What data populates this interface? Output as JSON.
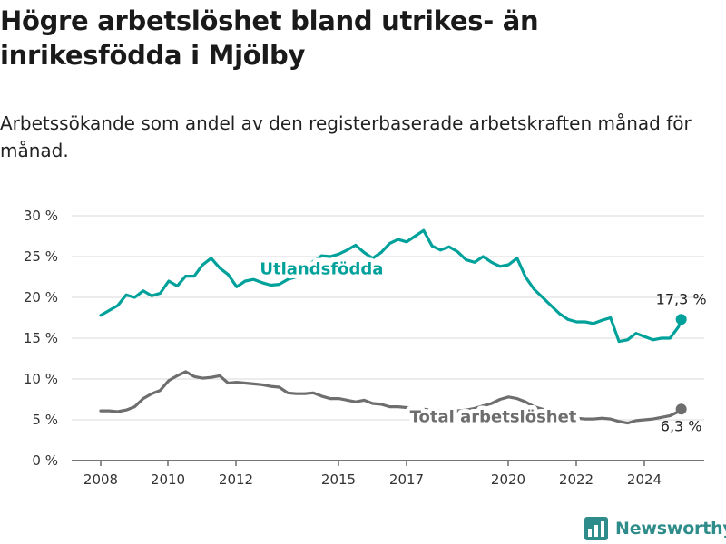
{
  "header": {
    "title": "Högre arbetslöshet bland utrikes- än inrikesfödda i Mjölby",
    "subtitle": "Arbetssökande som andel av den registerbaserade arbetskraften månad för månad."
  },
  "brand": {
    "name": "Newsworthy",
    "color": "#2e8c8a"
  },
  "chart_data": {
    "type": "line",
    "x_ticks": [
      "2008",
      "2010",
      "2012",
      "2015",
      "2017",
      "2020",
      "2022",
      "2024"
    ],
    "y_ticks": [
      "0 %",
      "5 %",
      "10 %",
      "15 %",
      "20 %",
      "25 %",
      "30 %"
    ],
    "ylim": [
      0,
      30
    ],
    "xlim": [
      2008,
      2025.3
    ],
    "grid": true,
    "series": [
      {
        "name": "Utlandsfödda",
        "color": "#00a19a",
        "end_label": "17,3 %",
        "points": [
          [
            2008.0,
            17.8
          ],
          [
            2008.25,
            18.4
          ],
          [
            2008.5,
            19.0
          ],
          [
            2008.75,
            20.3
          ],
          [
            2009.0,
            20.0
          ],
          [
            2009.25,
            20.8
          ],
          [
            2009.5,
            20.2
          ],
          [
            2009.75,
            20.5
          ],
          [
            2010.0,
            22.0
          ],
          [
            2010.25,
            21.4
          ],
          [
            2010.5,
            22.6
          ],
          [
            2010.75,
            22.6
          ],
          [
            2011.0,
            24.0
          ],
          [
            2011.25,
            24.8
          ],
          [
            2011.5,
            23.6
          ],
          [
            2011.75,
            22.8
          ],
          [
            2012.0,
            21.3
          ],
          [
            2012.25,
            22.0
          ],
          [
            2012.5,
            22.2
          ],
          [
            2012.75,
            21.8
          ],
          [
            2013.0,
            21.5
          ],
          [
            2013.25,
            21.6
          ],
          [
            2013.5,
            22.2
          ],
          [
            2013.75,
            22.5
          ],
          [
            2014.0,
            23.6
          ],
          [
            2014.25,
            24.4
          ],
          [
            2014.5,
            25.1
          ],
          [
            2014.75,
            25.0
          ],
          [
            2015.0,
            25.3
          ],
          [
            2015.25,
            25.8
          ],
          [
            2015.5,
            26.4
          ],
          [
            2015.75,
            25.5
          ],
          [
            2016.0,
            24.8
          ],
          [
            2016.25,
            25.5
          ],
          [
            2016.5,
            26.6
          ],
          [
            2016.75,
            27.1
          ],
          [
            2017.0,
            26.8
          ],
          [
            2017.25,
            27.5
          ],
          [
            2017.5,
            28.2
          ],
          [
            2017.75,
            26.3
          ],
          [
            2018.0,
            25.8
          ],
          [
            2018.25,
            26.2
          ],
          [
            2018.5,
            25.6
          ],
          [
            2018.75,
            24.6
          ],
          [
            2019.0,
            24.3
          ],
          [
            2019.25,
            25.0
          ],
          [
            2019.5,
            24.3
          ],
          [
            2019.75,
            23.8
          ],
          [
            2020.0,
            24.0
          ],
          [
            2020.25,
            24.8
          ],
          [
            2020.5,
            22.5
          ],
          [
            2020.75,
            21.0
          ],
          [
            2021.0,
            20.0
          ],
          [
            2021.25,
            19.0
          ],
          [
            2021.5,
            18.0
          ],
          [
            2021.75,
            17.3
          ],
          [
            2022.0,
            17.0
          ],
          [
            2022.25,
            17.0
          ],
          [
            2022.5,
            16.8
          ],
          [
            2022.75,
            17.2
          ],
          [
            2023.0,
            17.5
          ],
          [
            2023.25,
            14.6
          ],
          [
            2023.5,
            14.8
          ],
          [
            2023.75,
            15.6
          ],
          [
            2024.0,
            15.2
          ],
          [
            2024.25,
            14.8
          ],
          [
            2024.5,
            15.0
          ],
          [
            2024.75,
            15.0
          ],
          [
            2025.0,
            16.4
          ],
          [
            2025.08,
            17.3
          ]
        ]
      },
      {
        "name": "Total arbetslöshet",
        "color": "#6e6e6e",
        "end_label": "6,3 %",
        "points": [
          [
            2008.0,
            6.1
          ],
          [
            2008.25,
            6.1
          ],
          [
            2008.5,
            6.0
          ],
          [
            2008.75,
            6.2
          ],
          [
            2009.0,
            6.6
          ],
          [
            2009.25,
            7.6
          ],
          [
            2009.5,
            8.2
          ],
          [
            2009.75,
            8.6
          ],
          [
            2010.0,
            9.8
          ],
          [
            2010.25,
            10.4
          ],
          [
            2010.5,
            10.9
          ],
          [
            2010.75,
            10.3
          ],
          [
            2011.0,
            10.1
          ],
          [
            2011.25,
            10.2
          ],
          [
            2011.5,
            10.4
          ],
          [
            2011.75,
            9.5
          ],
          [
            2012.0,
            9.6
          ],
          [
            2012.25,
            9.5
          ],
          [
            2012.5,
            9.4
          ],
          [
            2012.75,
            9.3
          ],
          [
            2013.0,
            9.1
          ],
          [
            2013.25,
            9.0
          ],
          [
            2013.5,
            8.3
          ],
          [
            2013.75,
            8.2
          ],
          [
            2014.0,
            8.2
          ],
          [
            2014.25,
            8.3
          ],
          [
            2014.5,
            7.9
          ],
          [
            2014.75,
            7.6
          ],
          [
            2015.0,
            7.6
          ],
          [
            2015.25,
            7.4
          ],
          [
            2015.5,
            7.2
          ],
          [
            2015.75,
            7.4
          ],
          [
            2016.0,
            7.0
          ],
          [
            2016.25,
            6.9
          ],
          [
            2016.5,
            6.6
          ],
          [
            2016.75,
            6.6
          ],
          [
            2017.0,
            6.5
          ],
          [
            2017.25,
            6.4
          ],
          [
            2017.5,
            6.3
          ],
          [
            2017.75,
            6.2
          ],
          [
            2018.0,
            6.1
          ],
          [
            2018.25,
            6.0
          ],
          [
            2018.5,
            6.1
          ],
          [
            2018.75,
            6.2
          ],
          [
            2019.0,
            6.4
          ],
          [
            2019.25,
            6.7
          ],
          [
            2019.5,
            7.0
          ],
          [
            2019.75,
            7.5
          ],
          [
            2020.0,
            7.8
          ],
          [
            2020.25,
            7.6
          ],
          [
            2020.5,
            7.2
          ],
          [
            2020.75,
            6.6
          ],
          [
            2021.0,
            6.3
          ],
          [
            2021.25,
            5.9
          ],
          [
            2021.5,
            5.5
          ],
          [
            2021.75,
            5.2
          ],
          [
            2022.0,
            5.2
          ],
          [
            2022.25,
            5.1
          ],
          [
            2022.5,
            5.1
          ],
          [
            2022.75,
            5.2
          ],
          [
            2023.0,
            5.1
          ],
          [
            2023.25,
            4.8
          ],
          [
            2023.5,
            4.6
          ],
          [
            2023.75,
            4.9
          ],
          [
            2024.0,
            5.0
          ],
          [
            2024.25,
            5.1
          ],
          [
            2024.5,
            5.3
          ],
          [
            2024.75,
            5.5
          ],
          [
            2025.0,
            6.0
          ],
          [
            2025.08,
            6.3
          ]
        ]
      }
    ],
    "labels": [
      {
        "text": "Utlandsfödda",
        "series": 0,
        "x": 2014.5,
        "y": 23.5
      },
      {
        "text": "Total arbetslöshet",
        "series": 1,
        "x": 2019.55,
        "y": 5.4
      }
    ]
  }
}
